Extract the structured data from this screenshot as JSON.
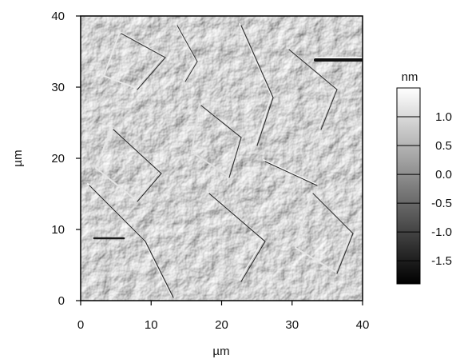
{
  "chart_data": {
    "type": "heatmap",
    "title": "",
    "xlabel": "µm",
    "ylabel": "µm",
    "xlim": [
      0,
      40
    ],
    "ylim": [
      0,
      40
    ],
    "x_ticks": [
      0,
      10,
      20,
      30,
      40
    ],
    "y_ticks": [
      0,
      10,
      20,
      30,
      40
    ],
    "colorbar": {
      "label": "nm",
      "range": [
        -1.9,
        1.5
      ],
      "ticks": [
        1.0,
        0.5,
        0.0,
        -0.5,
        -1.0,
        -1.5
      ],
      "tick_labels": [
        "1.0",
        "0.5",
        "0.0",
        "-0.5",
        "-1.0",
        "-1.5"
      ],
      "colormap": "grayscale",
      "low_color": "#000000",
      "high_color": "#ffffff"
    },
    "image_description_colors": {
      "base": "#9a9a9a"
    },
    "grid": false,
    "legend": "none"
  }
}
